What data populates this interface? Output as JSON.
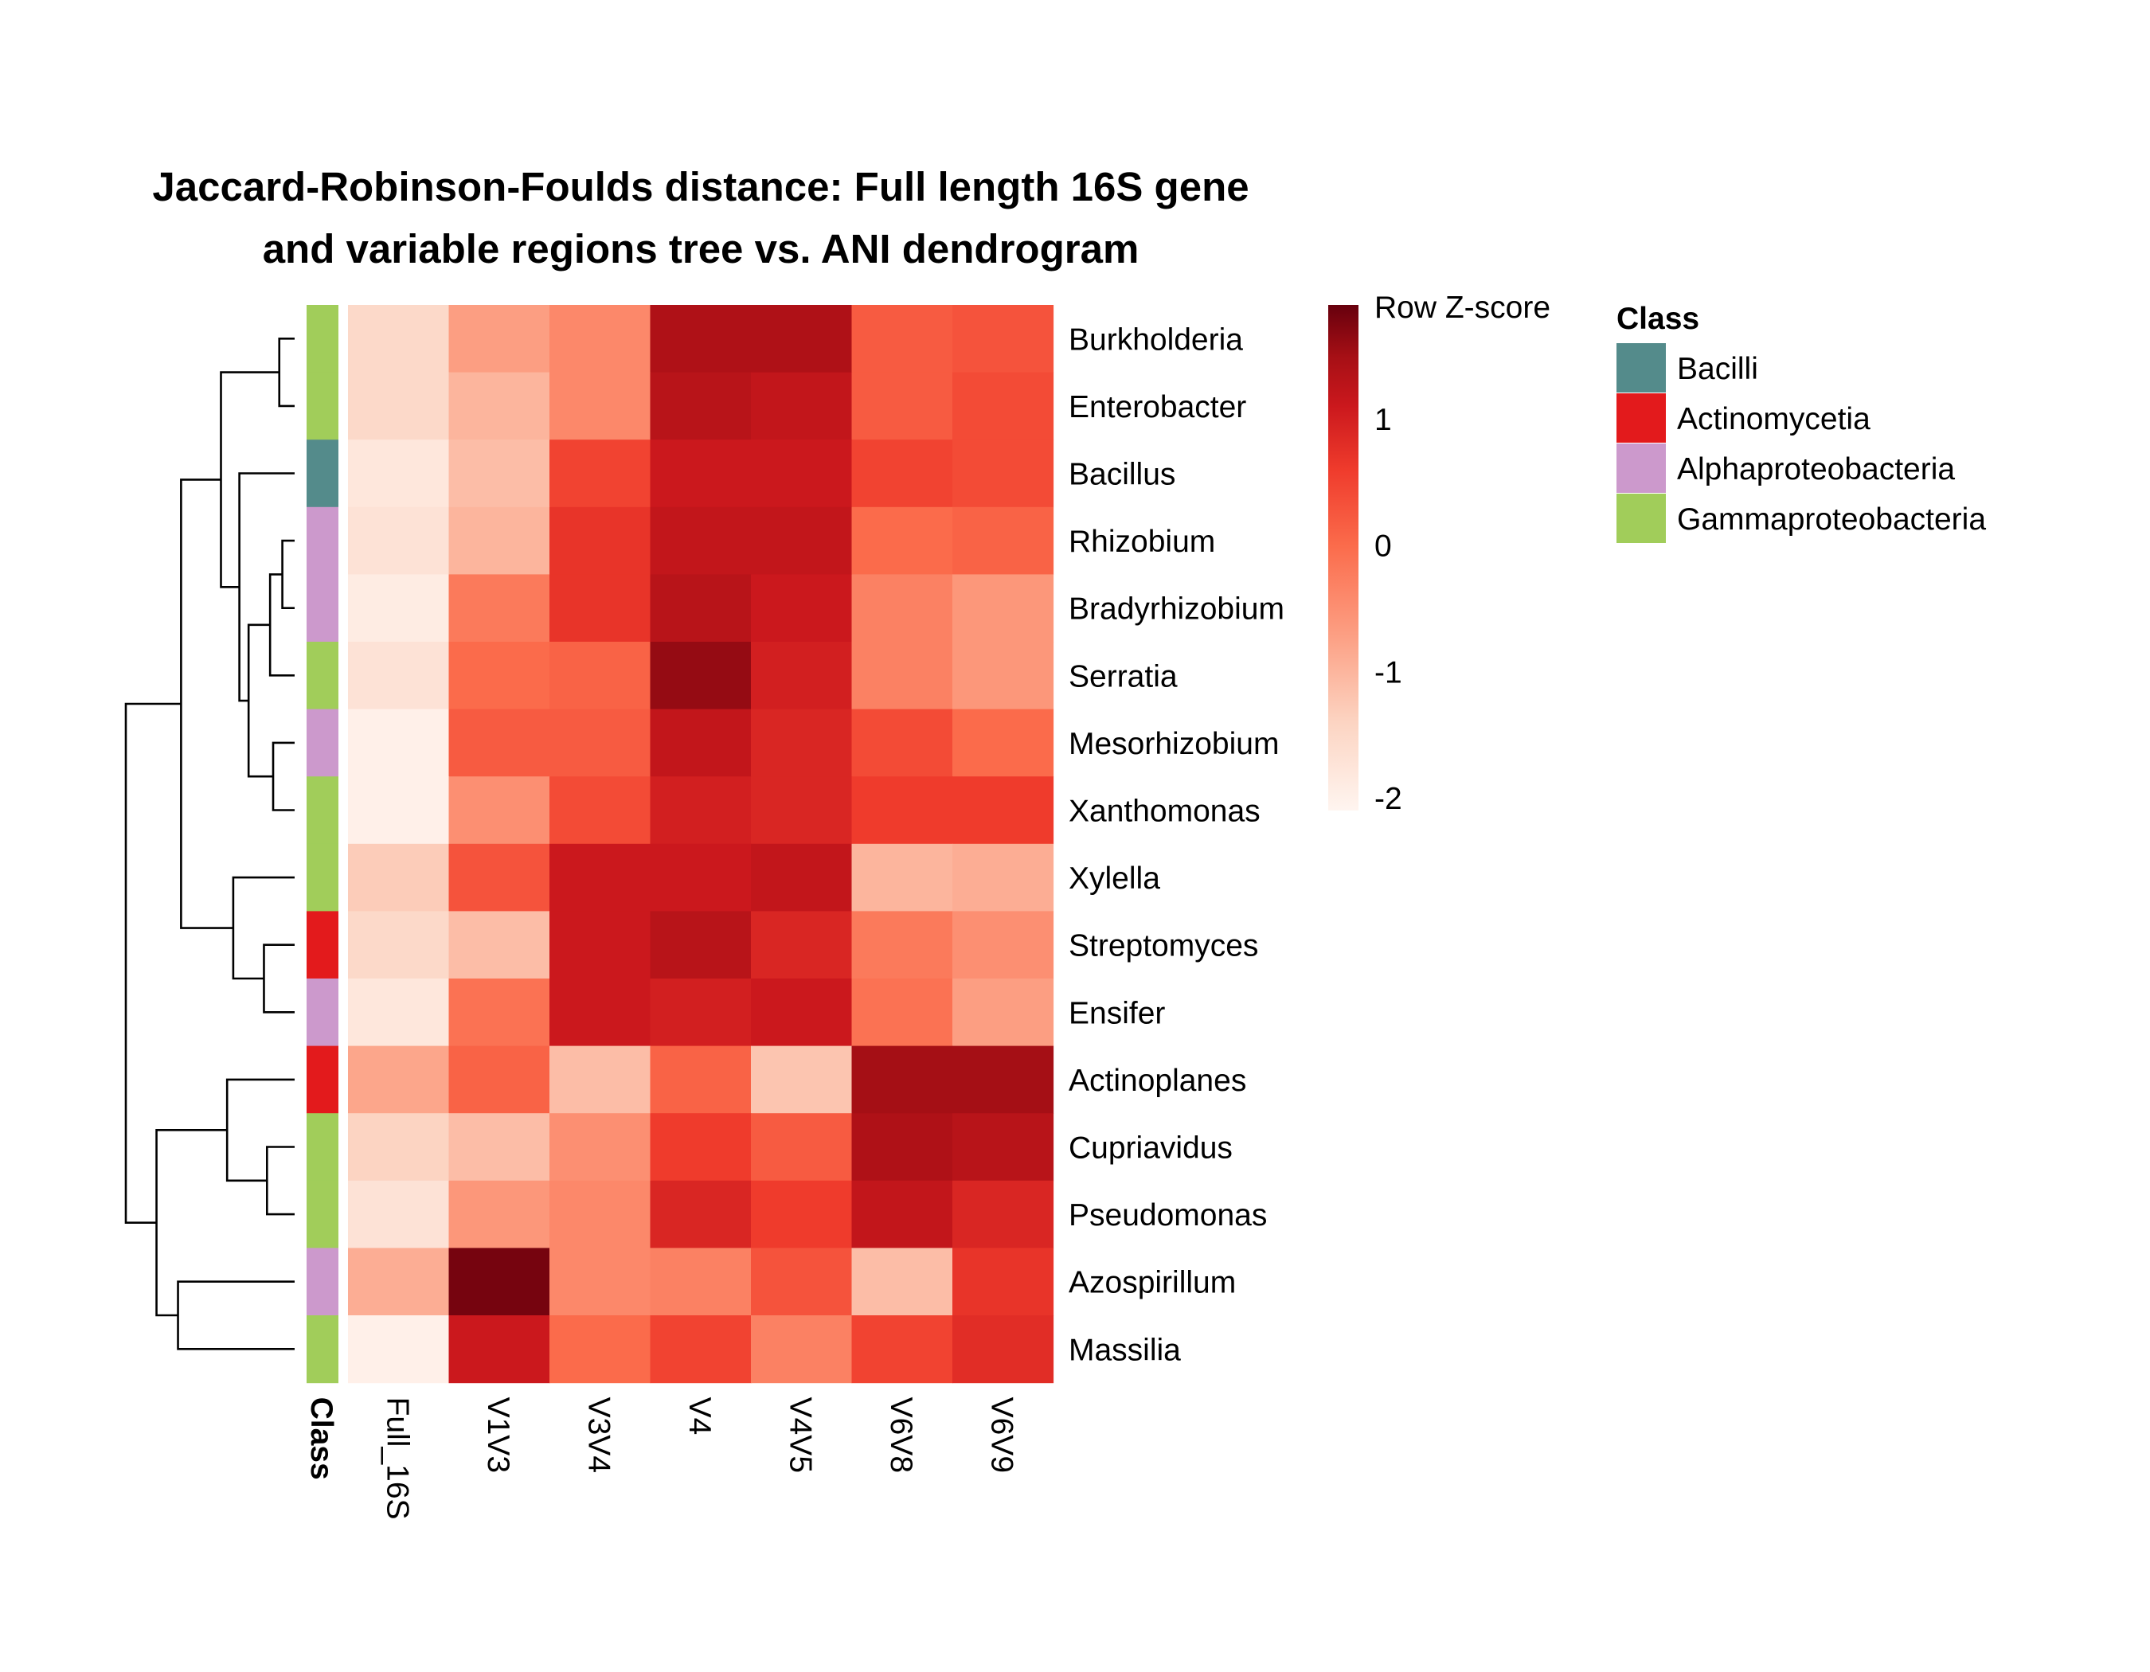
{
  "title_lines": [
    "Jaccard-Robinson-Foulds distance: Full length 16S gene",
    "and variable regions tree vs. ANI dendrogram"
  ],
  "chart_data": {
    "type": "heatmap",
    "title": "Jaccard-Robinson-Foulds distance: Full length 16S gene and variable regions tree vs. ANI dendrogram",
    "rows": [
      "Burkholderia",
      "Enterobacter",
      "Bacillus",
      "Rhizobium",
      "Bradyrhizobium",
      "Serratia",
      "Mesorhizobium",
      "Xanthomonas",
      "Xylella",
      "Streptomyces",
      "Ensifer",
      "Actinoplanes",
      "Cupriavidus",
      "Pseudomonas",
      "Azospirillum",
      "Massilia"
    ],
    "columns": [
      "Full_16S",
      "V1V3",
      "V3V4",
      "V4",
      "V4V5",
      "V6V8",
      "V6V9"
    ],
    "values": [
      [
        -1.5,
        -0.7,
        -0.4,
        1.4,
        1.4,
        0.2,
        0.3
      ],
      [
        -1.5,
        -1.0,
        -0.4,
        1.3,
        1.2,
        0.2,
        0.4
      ],
      [
        -1.8,
        -1.1,
        0.5,
        1.1,
        1.1,
        0.5,
        0.4
      ],
      [
        -1.7,
        -1.0,
        0.7,
        1.2,
        1.2,
        0.0,
        0.1
      ],
      [
        -1.9,
        -0.2,
        0.7,
        1.3,
        1.1,
        -0.3,
        -0.6
      ],
      [
        -1.7,
        0.0,
        0.1,
        1.6,
        1.0,
        -0.3,
        -0.6
      ],
      [
        -2.0,
        0.2,
        0.2,
        1.2,
        0.9,
        0.4,
        0.0
      ],
      [
        -2.0,
        -0.5,
        0.4,
        1.0,
        0.9,
        0.6,
        0.6
      ],
      [
        -1.3,
        0.3,
        1.1,
        1.1,
        1.2,
        -1.0,
        -0.9
      ],
      [
        -1.5,
        -1.1,
        1.1,
        1.3,
        0.9,
        -0.2,
        -0.5
      ],
      [
        -1.8,
        -0.1,
        1.1,
        1.0,
        1.1,
        -0.1,
        -0.7
      ],
      [
        -0.8,
        0.1,
        -1.1,
        0.1,
        -1.2,
        1.5,
        1.5
      ],
      [
        -1.4,
        -1.1,
        -0.5,
        0.6,
        0.2,
        1.4,
        1.3
      ],
      [
        -1.7,
        -0.6,
        -0.4,
        0.9,
        0.6,
        1.2,
        0.9
      ],
      [
        -0.9,
        1.8,
        -0.4,
        -0.3,
        0.3,
        -1.1,
        0.7
      ],
      [
        -2.0,
        1.1,
        0.0,
        0.5,
        -0.3,
        0.5,
        0.8
      ]
    ],
    "row_class": [
      "Gammaproteobacteria",
      "Gammaproteobacteria",
      "Bacilli",
      "Alphaproteobacteria",
      "Alphaproteobacteria",
      "Gammaproteobacteria",
      "Alphaproteobacteria",
      "Gammaproteobacteria",
      "Gammaproteobacteria",
      "Actinomycetia",
      "Alphaproteobacteria",
      "Actinomycetia",
      "Gammaproteobacteria",
      "Gammaproteobacteria",
      "Alphaproteobacteria",
      "Gammaproteobacteria"
    ],
    "annotation_label": "Class",
    "class_legend": {
      "title": "Class",
      "entries": [
        {
          "name": "Bacilli",
          "color": "#548b8b"
        },
        {
          "name": "Actinomycetia",
          "color": "#e31a1c"
        },
        {
          "name": "Alphaproteobacteria",
          "color": "#cc99cc"
        },
        {
          "name": "Gammaproteobacteria",
          "color": "#a1cd5a"
        }
      ]
    },
    "color_scale": {
      "title": "Row Z-score",
      "ticks": [
        1,
        0,
        -1,
        -2
      ],
      "range": [
        -2.1,
        1.9
      ],
      "stops": [
        {
          "value": -2.1,
          "color": "#fff5f0"
        },
        {
          "value": -1.4,
          "color": "#fcd4c2"
        },
        {
          "value": -0.7,
          "color": "#fc9e82"
        },
        {
          "value": 0.0,
          "color": "#fb6b4b"
        },
        {
          "value": 0.6,
          "color": "#ef3b2c"
        },
        {
          "value": 1.1,
          "color": "#cb181d"
        },
        {
          "value": 1.5,
          "color": "#a50f15"
        },
        {
          "value": 1.9,
          "color": "#67000d"
        }
      ]
    },
    "dendrogram": {
      "merges": [
        [
          -1,
          -2
        ],
        [
          -4,
          -5
        ],
        [
          2,
          -6
        ],
        [
          -7,
          -8
        ],
        [
          3,
          4
        ],
        [
          -3,
          5
        ],
        [
          1,
          6
        ],
        [
          -10,
          -11
        ],
        [
          -9,
          8
        ],
        [
          7,
          9
        ],
        [
          -13,
          -14
        ],
        [
          -12,
          11
        ],
        [
          -15,
          -16
        ],
        [
          12,
          13
        ],
        [
          10,
          14
        ]
      ],
      "heights": [
        0.5,
        0.4,
        0.8,
        0.7,
        1.5,
        1.8,
        2.4,
        1.0,
        2.0,
        3.7,
        0.9,
        2.2,
        3.8,
        4.5,
        5.5
      ]
    },
    "legend_placement": "right"
  }
}
